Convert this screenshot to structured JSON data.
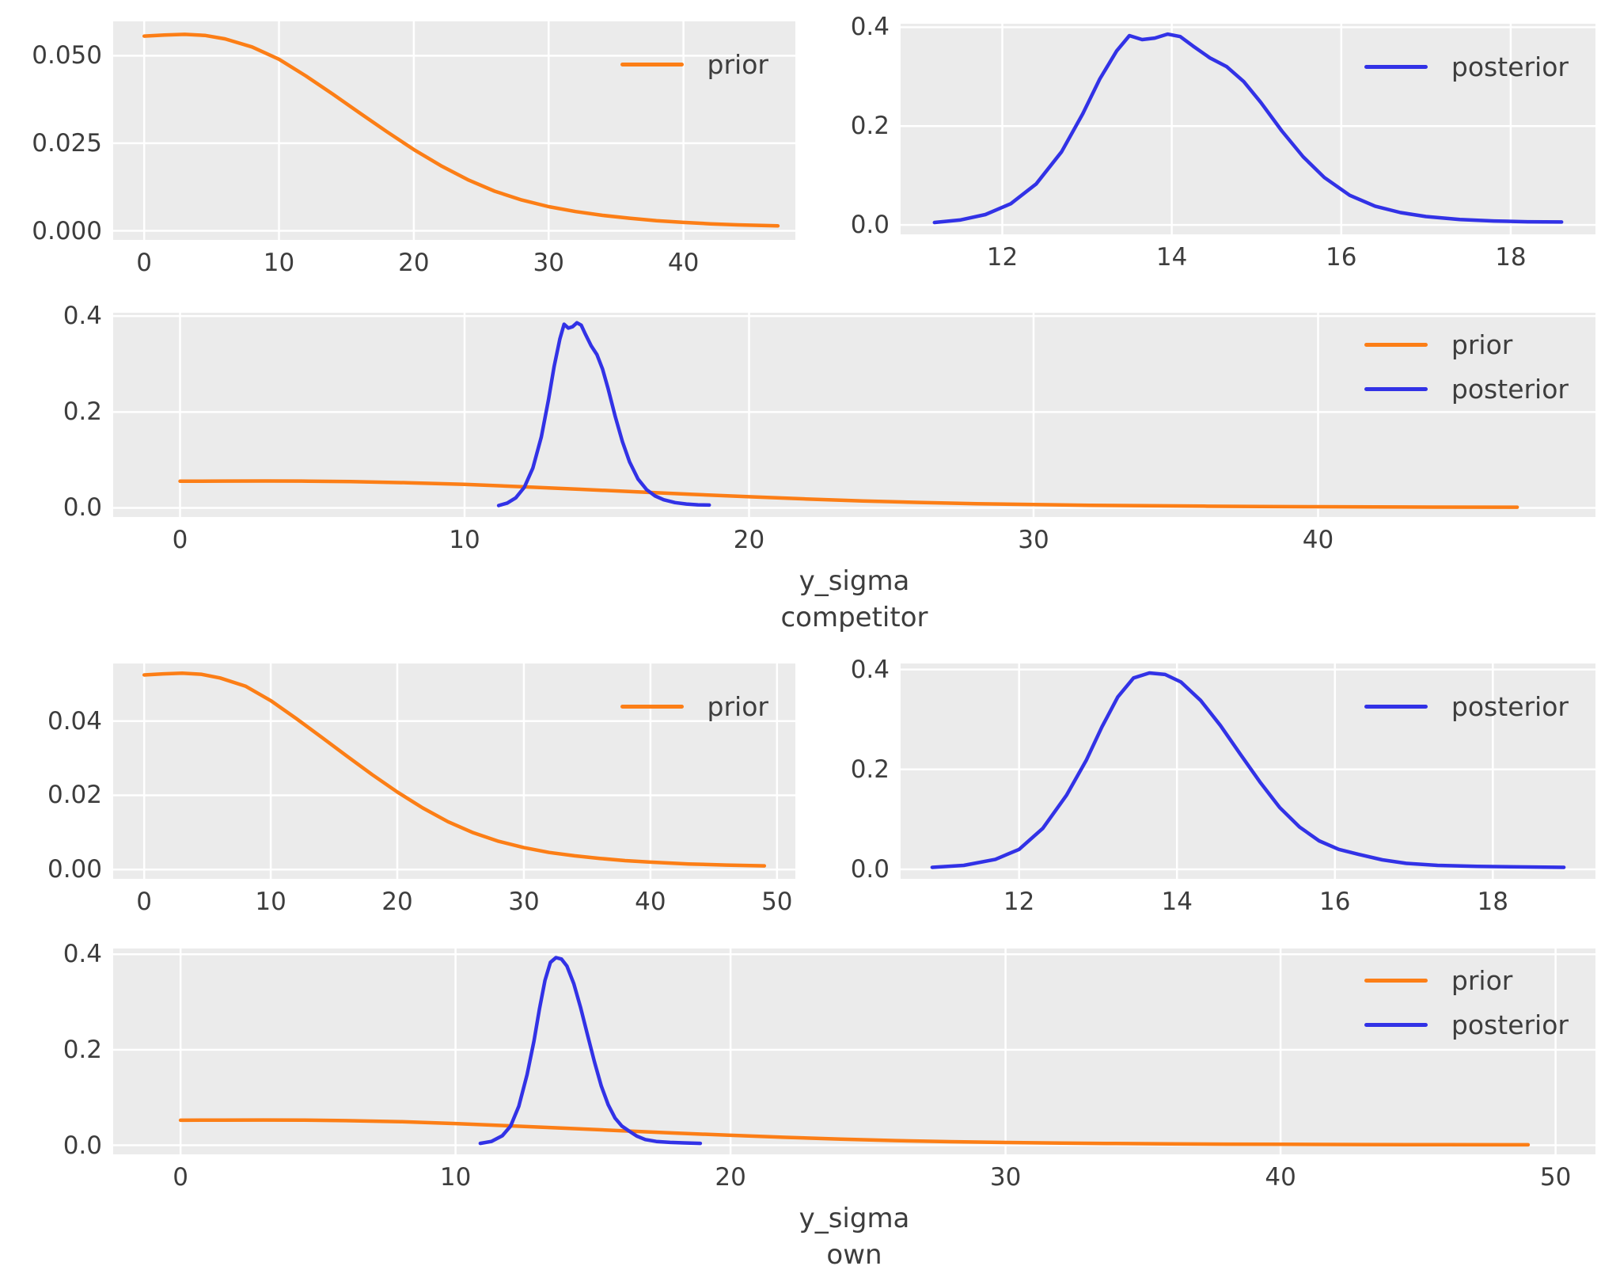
{
  "palette": {
    "prior": "#fc7e16",
    "posterior": "#3232e6",
    "axes_bg": "#ebebeb",
    "grid": "#ffffff",
    "text": "#3d3d3d"
  },
  "chart_data": {
    "type": "line",
    "description": "Prior and posterior density curves for y_sigma of competitor and own",
    "legend_labels": {
      "prior": "prior",
      "posterior": "posterior"
    },
    "distributions": {
      "competitor_prior": {
        "x": [
          0,
          1.5,
          3,
          4.5,
          6,
          8,
          10,
          12,
          14,
          16,
          18,
          20,
          22,
          24,
          26,
          28,
          30,
          32,
          34,
          36,
          38,
          40,
          42,
          44,
          47
        ],
        "y": [
          0.0556,
          0.0559,
          0.0561,
          0.0558,
          0.0548,
          0.0525,
          0.049,
          0.0442,
          0.039,
          0.0336,
          0.0283,
          0.0232,
          0.0186,
          0.0146,
          0.0113,
          0.0088,
          0.0069,
          0.0055,
          0.0044,
          0.0036,
          0.0029,
          0.0024,
          0.002,
          0.0017,
          0.0014
        ]
      },
      "competitor_posterior": {
        "x": [
          11.2,
          11.5,
          11.8,
          12.1,
          12.4,
          12.7,
          12.95,
          13.15,
          13.35,
          13.5,
          13.65,
          13.8,
          13.95,
          14.1,
          14.25,
          14.45,
          14.65,
          14.85,
          15.05,
          15.3,
          15.55,
          15.8,
          16.1,
          16.4,
          16.7,
          17.0,
          17.4,
          17.8,
          18.2,
          18.6
        ],
        "y": [
          0.005,
          0.01,
          0.021,
          0.043,
          0.083,
          0.148,
          0.225,
          0.295,
          0.352,
          0.383,
          0.375,
          0.378,
          0.386,
          0.381,
          0.362,
          0.338,
          0.32,
          0.29,
          0.248,
          0.19,
          0.138,
          0.096,
          0.06,
          0.038,
          0.025,
          0.017,
          0.011,
          0.008,
          0.0065,
          0.006
        ]
      },
      "own_prior": {
        "x": [
          0,
          1.5,
          3,
          4.5,
          6,
          8,
          10,
          12,
          14,
          16,
          18,
          20,
          22,
          24,
          26,
          28,
          30,
          32,
          34,
          36,
          38,
          40,
          43,
          46,
          49
        ],
        "y": [
          0.0524,
          0.0527,
          0.0529,
          0.0526,
          0.0516,
          0.0494,
          0.0455,
          0.0407,
          0.0357,
          0.0306,
          0.0256,
          0.0209,
          0.0166,
          0.0129,
          0.0099,
          0.0076,
          0.0059,
          0.0046,
          0.0037,
          0.003,
          0.0024,
          0.002,
          0.0015,
          0.0012,
          0.001
        ]
      },
      "own_posterior": {
        "x": [
          10.9,
          11.3,
          11.7,
          12.0,
          12.3,
          12.6,
          12.85,
          13.05,
          13.25,
          13.45,
          13.65,
          13.85,
          14.05,
          14.3,
          14.55,
          14.8,
          15.05,
          15.3,
          15.55,
          15.8,
          16.05,
          16.3,
          16.6,
          16.9,
          17.3,
          17.8,
          18.3,
          18.9
        ],
        "y": [
          0.004,
          0.008,
          0.02,
          0.04,
          0.082,
          0.148,
          0.218,
          0.285,
          0.345,
          0.383,
          0.393,
          0.39,
          0.375,
          0.338,
          0.288,
          0.231,
          0.175,
          0.124,
          0.085,
          0.057,
          0.04,
          0.03,
          0.019,
          0.012,
          0.008,
          0.006,
          0.005,
          0.004
        ]
      }
    },
    "panels": [
      {
        "id": "competitor-prior-panel",
        "series": [
          {
            "name": "prior",
            "data": "competitor_prior"
          }
        ],
        "legend": [
          "prior"
        ],
        "xticks": [
          0,
          10,
          20,
          30,
          40
        ],
        "xtick_labels": [
          "0",
          "10",
          "20",
          "30",
          "40"
        ],
        "yticks": [
          0.0,
          0.025,
          0.05
        ],
        "ytick_labels": [
          "0.000",
          "0.025",
          "0.050"
        ],
        "xlim": [
          -2.3,
          48.3
        ],
        "ylim": [
          -0.0026,
          0.0598
        ],
        "xlabel": null
      },
      {
        "id": "competitor-posterior-panel",
        "series": [
          {
            "name": "posterior",
            "data": "competitor_posterior"
          }
        ],
        "legend": [
          "posterior"
        ],
        "xticks": [
          12,
          14,
          16,
          18
        ],
        "xtick_labels": [
          "12",
          "14",
          "16",
          "18"
        ],
        "yticks": [
          0.0,
          0.2,
          0.4
        ],
        "ytick_labels": [
          "0.0",
          "0.2",
          "0.4"
        ],
        "xlim": [
          10.8,
          19.0
        ],
        "ylim": [
          -0.019,
          0.407
        ],
        "xlabel": null
      },
      {
        "id": "competitor-combined-panel",
        "series": [
          {
            "name": "prior",
            "data": "competitor_prior"
          },
          {
            "name": "posterior",
            "data": "competitor_posterior"
          }
        ],
        "legend": [
          "prior",
          "posterior"
        ],
        "xticks": [
          0,
          10,
          20,
          30,
          40
        ],
        "xtick_labels": [
          "0",
          "10",
          "20",
          "30",
          "40"
        ],
        "yticks": [
          0.0,
          0.2,
          0.4
        ],
        "ytick_labels": [
          "0.0",
          "0.2",
          "0.4"
        ],
        "xlim": [
          -2.35,
          49.75
        ],
        "ylim": [
          -0.019,
          0.407
        ],
        "xlabel": [
          "y_sigma",
          "competitor"
        ]
      },
      {
        "id": "own-prior-panel",
        "series": [
          {
            "name": "prior",
            "data": "own_prior"
          }
        ],
        "legend": [
          "prior"
        ],
        "xticks": [
          0,
          10,
          20,
          30,
          40,
          50
        ],
        "xtick_labels": [
          "0",
          "10",
          "20",
          "30",
          "40",
          "50"
        ],
        "yticks": [
          0.0,
          0.02,
          0.04
        ],
        "ytick_labels": [
          "0.00",
          "0.02",
          "0.04"
        ],
        "xlim": [
          -2.45,
          51.45
        ],
        "ylim": [
          -0.0025,
          0.0555
        ],
        "xlabel": null
      },
      {
        "id": "own-posterior-panel",
        "series": [
          {
            "name": "posterior",
            "data": "own_posterior"
          }
        ],
        "legend": [
          "posterior"
        ],
        "xticks": [
          12,
          14,
          16,
          18
        ],
        "xtick_labels": [
          "12",
          "14",
          "16",
          "18"
        ],
        "yticks": [
          0.0,
          0.2,
          0.4
        ],
        "ytick_labels": [
          "0.0",
          "0.2",
          "0.4"
        ],
        "xlim": [
          10.5,
          19.3
        ],
        "ylim": [
          -0.019,
          0.412
        ],
        "xlabel": null
      },
      {
        "id": "own-combined-panel",
        "series": [
          {
            "name": "prior",
            "data": "own_prior"
          },
          {
            "name": "posterior",
            "data": "own_posterior"
          }
        ],
        "legend": [
          "prior",
          "posterior"
        ],
        "xticks": [
          0,
          10,
          20,
          30,
          40,
          50
        ],
        "xtick_labels": [
          "0",
          "10",
          "20",
          "30",
          "40",
          "50"
        ],
        "yticks": [
          0.0,
          0.2,
          0.4
        ],
        "ytick_labels": [
          "0.0",
          "0.2",
          "0.4"
        ],
        "xlim": [
          -2.45,
          51.45
        ],
        "ylim": [
          -0.019,
          0.412
        ],
        "xlabel": [
          "y_sigma",
          "own"
        ]
      }
    ]
  }
}
